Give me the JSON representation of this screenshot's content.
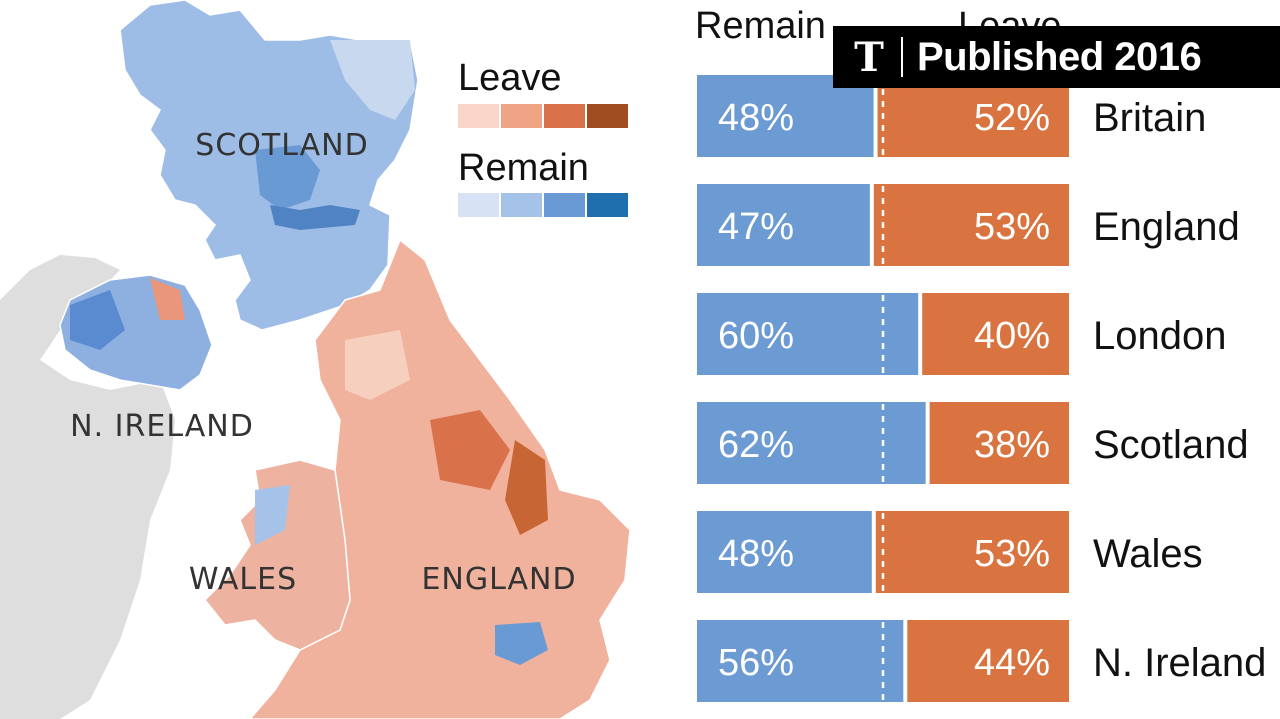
{
  "map": {
    "region_labels": {
      "scotland": "SCOTLAND",
      "n_ireland": "N. IRELAND",
      "wales": "WALES",
      "england": "ENGLAND"
    },
    "legend": {
      "leave_title": "Leave",
      "remain_title": "Remain",
      "leave_colors": [
        "#f8d5c8",
        "#f0a486",
        "#d9714a",
        "#a04d22"
      ],
      "remain_colors": [
        "#d7e3f4",
        "#a5c3e8",
        "#6a9ad3",
        "#1f6fae"
      ]
    },
    "colors": {
      "sea": "#ffffff",
      "land_other": "#dedede",
      "scotland_fill": "#9ebde6",
      "nireland_fill": "#8db0e0",
      "wales_fill": "#eeb3a0",
      "england_fill": "#f1b29d"
    }
  },
  "chart_data": {
    "type": "bar",
    "stacked": true,
    "orientation": "horizontal",
    "column_headers": {
      "remain": "Remain",
      "leave": "Leave"
    },
    "categories": [
      "Britain",
      "England",
      "London",
      "Scotland",
      "Wales",
      "N. Ireland"
    ],
    "series": [
      {
        "name": "Remain",
        "values": [
          48,
          47,
          60,
          62,
          48,
          56
        ],
        "color": "#6b9bd2"
      },
      {
        "name": "Leave",
        "values": [
          52,
          53,
          40,
          38,
          53,
          44
        ],
        "color": "#d9733f"
      }
    ],
    "midline": 50,
    "xlim": [
      0,
      100
    ]
  },
  "banner": {
    "logo": "T",
    "text": "Published 2016"
  }
}
